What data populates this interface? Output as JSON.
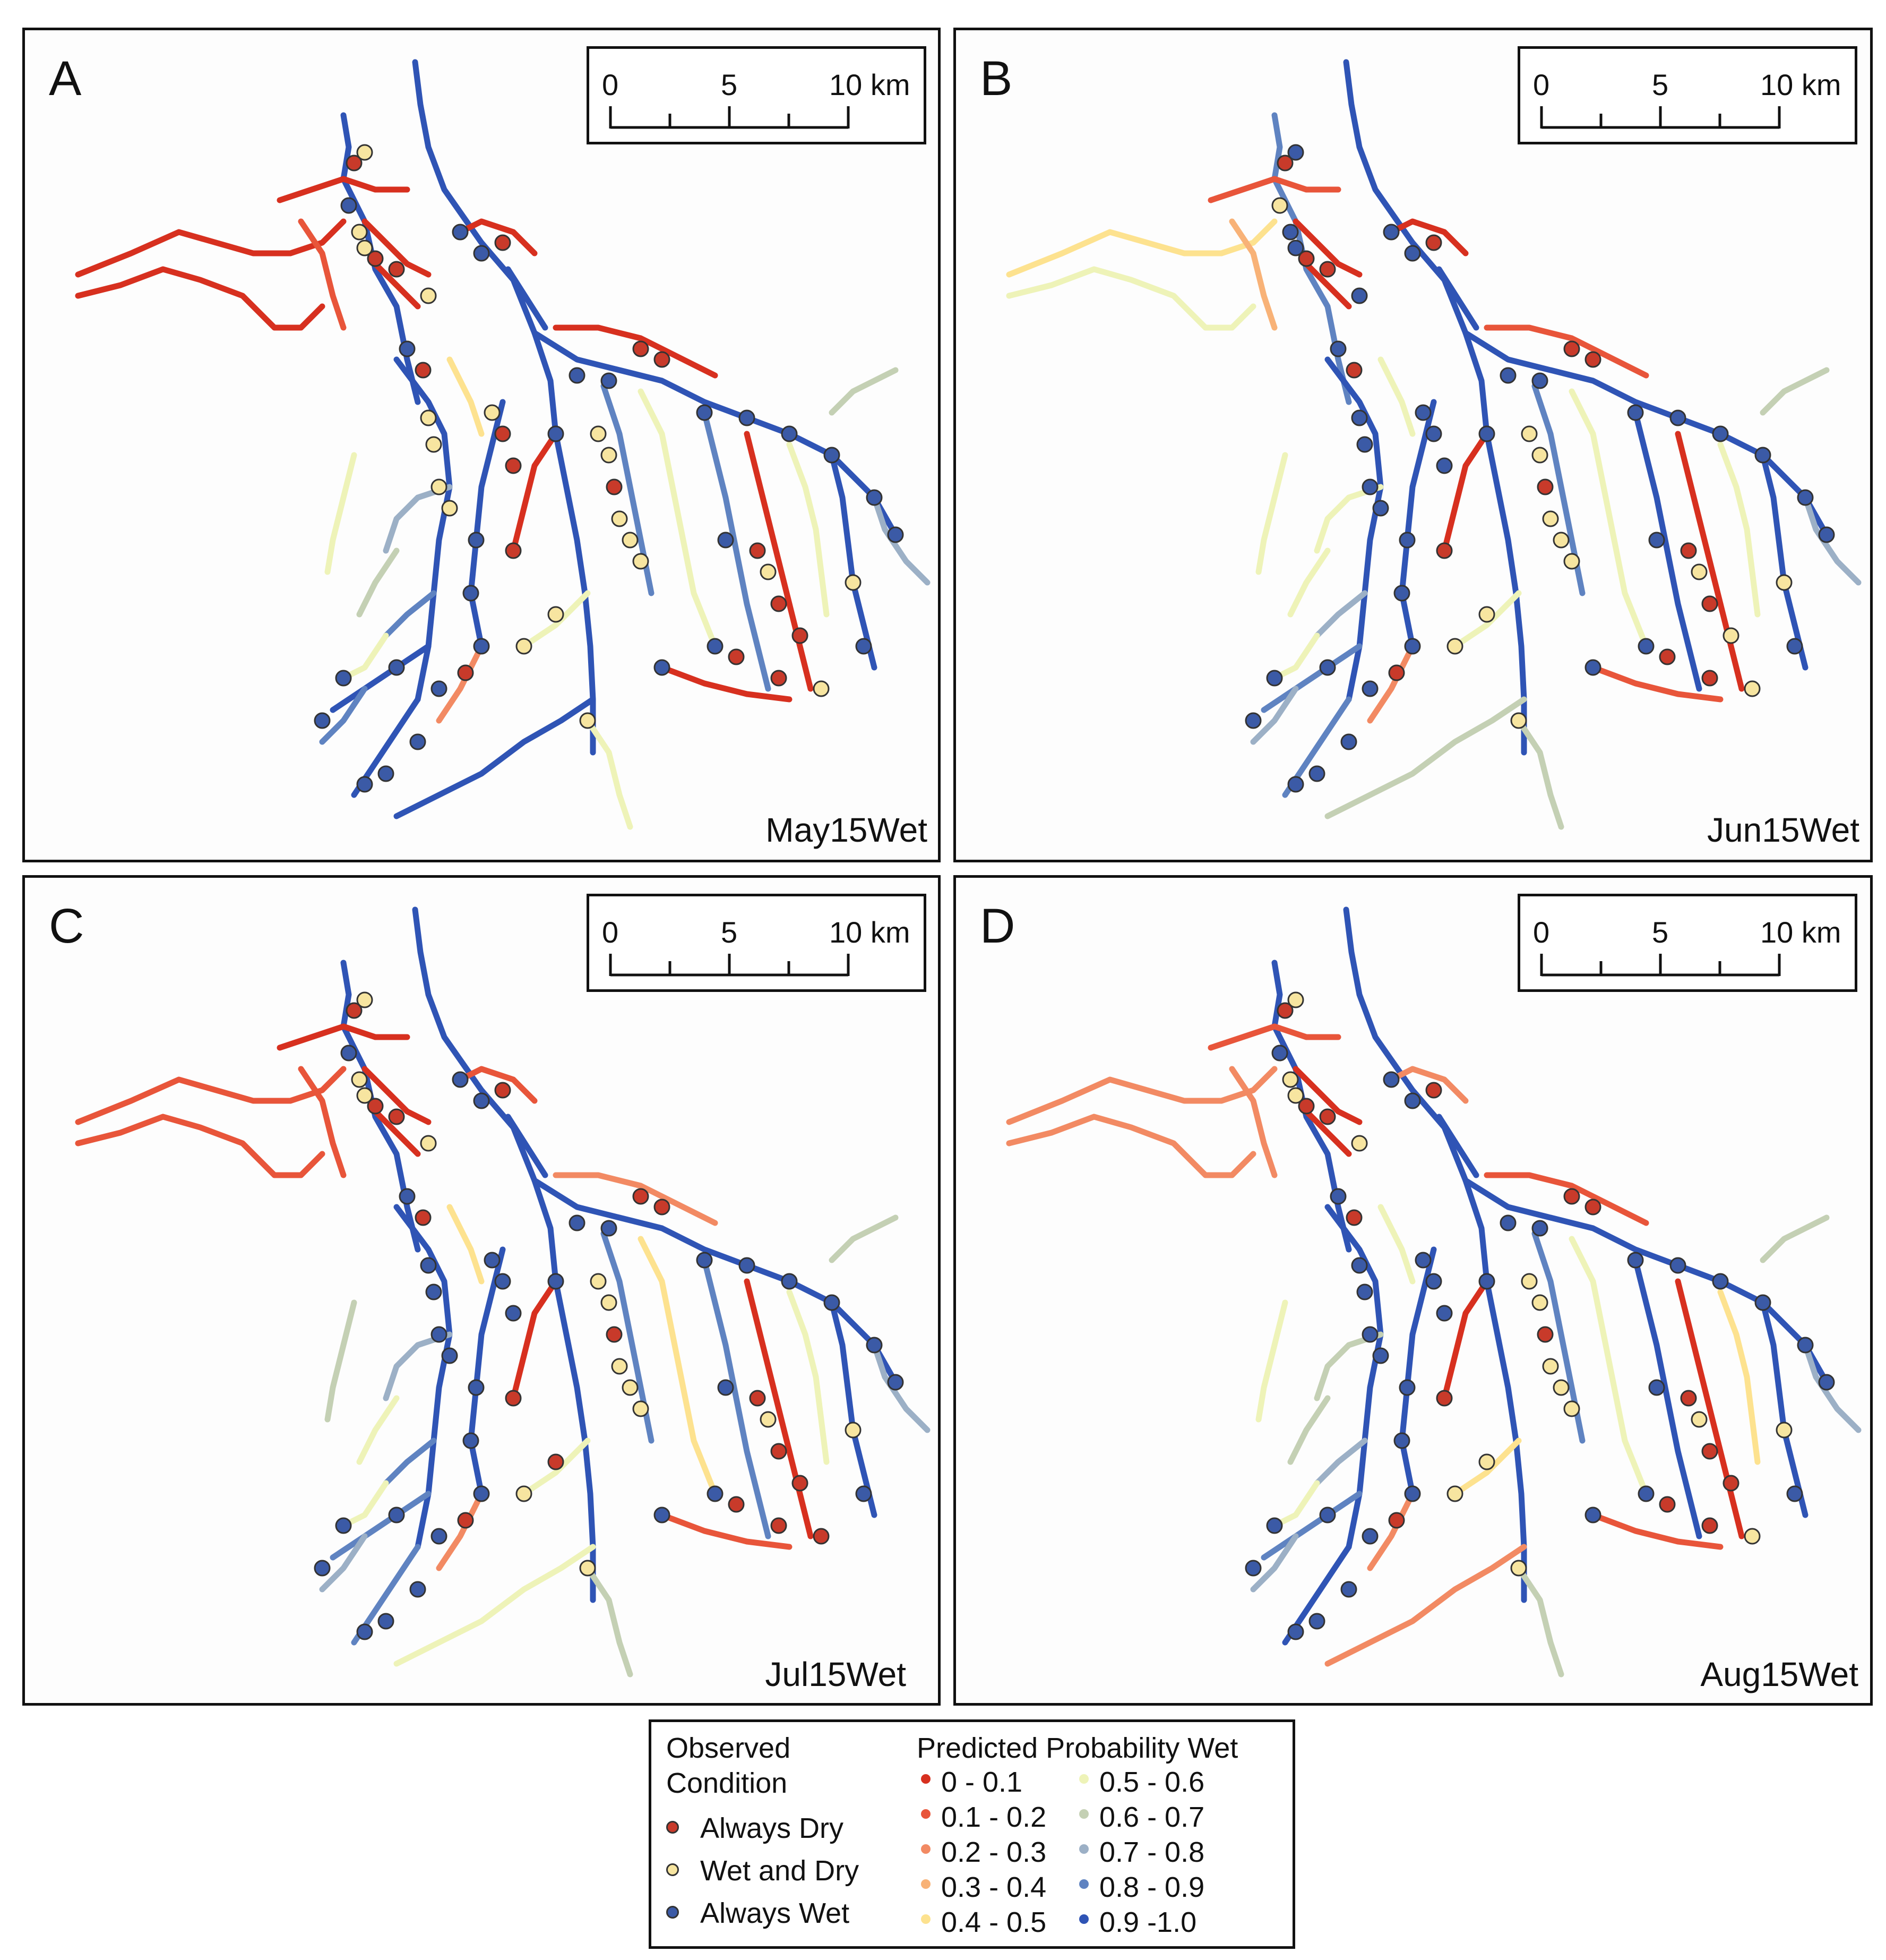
{
  "panels": [
    {
      "letter": "A",
      "scenario": "May15Wet",
      "scale": [
        "0",
        "5",
        "10 km"
      ]
    },
    {
      "letter": "B",
      "scenario": "Jun15Wet",
      "scale": [
        "0",
        "5",
        "10 km"
      ]
    },
    {
      "letter": "C",
      "scenario": "Jul15Wet",
      "scale": [
        "0",
        "5",
        "10 km"
      ]
    },
    {
      "letter": "D",
      "scenario": "Aug15Wet",
      "scale": [
        "0",
        "5",
        "10 km"
      ]
    }
  ],
  "legend": {
    "observed_title_1": "Observed",
    "observed_title_2": "Condition",
    "observed": [
      {
        "label": "Always Dry",
        "color": "#c83a2a"
      },
      {
        "label": "Wet and Dry",
        "color": "#f7e5a0"
      },
      {
        "label": "Always Wet",
        "color": "#3b5aa6"
      }
    ],
    "predicted_title": "Predicted Probability Wet",
    "classes": [
      {
        "label": "0 - 0.1",
        "color": "#d7301f"
      },
      {
        "label": "0.1 - 0.2",
        "color": "#e8553a"
      },
      {
        "label": "0.2 - 0.3",
        "color": "#f28a63"
      },
      {
        "label": "0.3 - 0.4",
        "color": "#f8b277"
      },
      {
        "label": "0.4 - 0.5",
        "color": "#fde28f"
      },
      {
        "label": "0.5 - 0.6",
        "color": "#eef3b8"
      },
      {
        "label": "0.6 - 0.7",
        "color": "#c4d0b4"
      },
      {
        "label": "0.7 - 0.8",
        "color": "#9cb0c6"
      },
      {
        "label": "0.8 - 0.9",
        "color": "#5f83c1"
      },
      {
        "label": "0.9 -1.0",
        "color": "#2f54b5"
      }
    ]
  }
}
